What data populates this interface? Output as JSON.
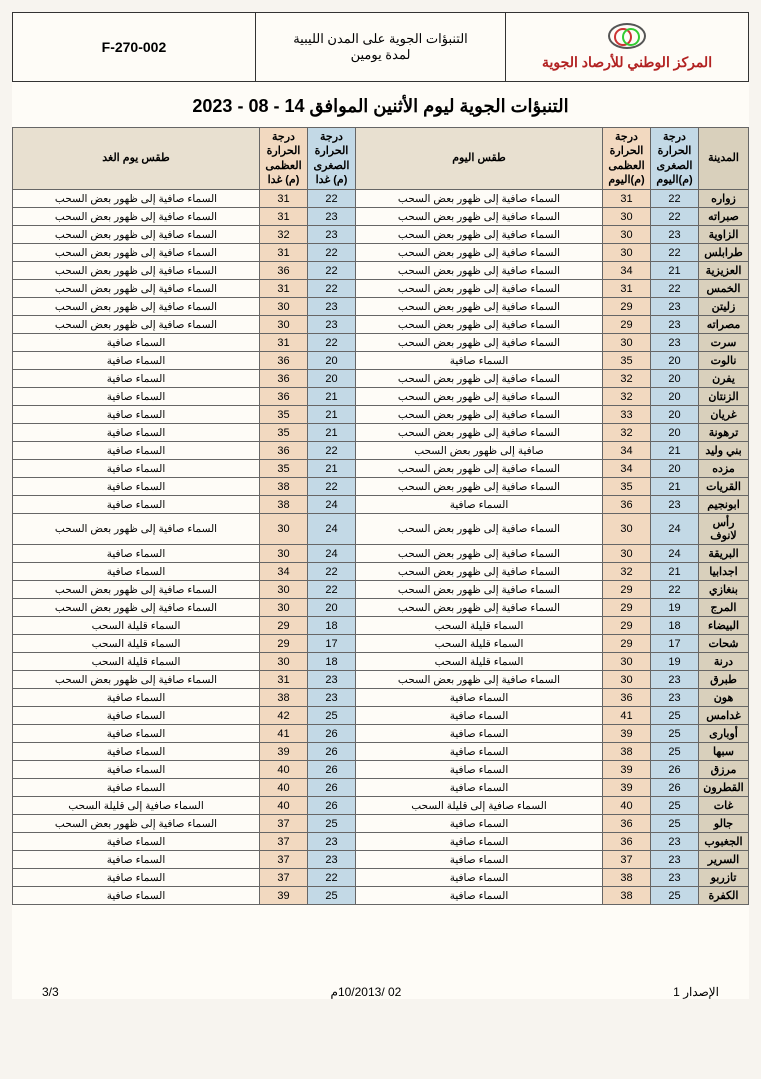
{
  "header": {
    "form_no": "F-270-002",
    "middle_line1": "التنبؤات الجوية على المدن الليبية",
    "middle_line2": "لمدة يومين",
    "org_name": "المركز الوطني للأرصاد الجوية"
  },
  "main_title": "التنبؤات الجوية ليوم الأثنين الموافق 14 - 08 - 2023",
  "columns": {
    "city": "المدينة",
    "min_today": "درجة الحرارة الصغرى (م)اليوم",
    "max_today": "درجة الحرارة العظمى (م)اليوم",
    "weather_today": "طقس اليوم",
    "min_tomorrow": "درجة الحرارة الصغرى (م) غدا",
    "max_tomorrow": "درجة الحرارة العظمى (م) غدا",
    "weather_tomorrow": "طقس يوم الغد"
  },
  "rows": [
    {
      "city": "زواره",
      "min_t": 22,
      "max_t": 31,
      "w_t": "السماء صافية إلى ظهور بعض السحب",
      "min_m": 22,
      "max_m": 31,
      "w_m": "السماء صافية إلى ظهور بعض السحب"
    },
    {
      "city": "صبراته",
      "min_t": 22,
      "max_t": 30,
      "w_t": "السماء صافية إلى ظهور بعض السحب",
      "min_m": 23,
      "max_m": 31,
      "w_m": "السماء صافية إلى ظهور بعض السحب"
    },
    {
      "city": "الزاوية",
      "min_t": 23,
      "max_t": 30,
      "w_t": "السماء صافية إلى ظهور بعض السحب",
      "min_m": 23,
      "max_m": 32,
      "w_m": "السماء صافية إلى ظهور بعض السحب"
    },
    {
      "city": "طرابلس",
      "min_t": 22,
      "max_t": 30,
      "w_t": "السماء صافية إلى ظهور بعض السحب",
      "min_m": 22,
      "max_m": 31,
      "w_m": "السماء صافية إلى ظهور بعض السحب"
    },
    {
      "city": "العزيزية",
      "min_t": 21,
      "max_t": 34,
      "w_t": "السماء صافية إلى ظهور بعض السحب",
      "min_m": 22,
      "max_m": 36,
      "w_m": "السماء صافية إلى ظهور بعض السحب"
    },
    {
      "city": "الخمس",
      "min_t": 22,
      "max_t": 31,
      "w_t": "السماء صافية إلى ظهور بعض السحب",
      "min_m": 22,
      "max_m": 31,
      "w_m": "السماء صافية إلى ظهور بعض السحب"
    },
    {
      "city": "زليتن",
      "min_t": 23,
      "max_t": 29,
      "w_t": "السماء صافية إلى ظهور بعض السحب",
      "min_m": 23,
      "max_m": 30,
      "w_m": "السماء صافية إلى ظهور بعض السحب"
    },
    {
      "city": "مصراته",
      "min_t": 23,
      "max_t": 29,
      "w_t": "السماء صافية إلى ظهور بعض السحب",
      "min_m": 23,
      "max_m": 30,
      "w_m": "السماء صافية إلى ظهور بعض السحب"
    },
    {
      "city": "سرت",
      "min_t": 23,
      "max_t": 30,
      "w_t": "السماء صافية إلى ظهور بعض السحب",
      "min_m": 22,
      "max_m": 31,
      "w_m": "السماء صافية"
    },
    {
      "city": "نالوت",
      "min_t": 20,
      "max_t": 35,
      "w_t": "السماء صافية",
      "min_m": 20,
      "max_m": 36,
      "w_m": "السماء صافية"
    },
    {
      "city": "يفرن",
      "min_t": 20,
      "max_t": 32,
      "w_t": "السماء صافية إلى ظهور بعض السحب",
      "min_m": 20,
      "max_m": 36,
      "w_m": "السماء صافية"
    },
    {
      "city": "الزنتان",
      "min_t": 20,
      "max_t": 32,
      "w_t": "السماء صافية إلى ظهور بعض السحب",
      "min_m": 21,
      "max_m": 36,
      "w_m": "السماء صافية"
    },
    {
      "city": "غريان",
      "min_t": 20,
      "max_t": 33,
      "w_t": "السماء صافية إلى ظهور بعض السحب",
      "min_m": 21,
      "max_m": 35,
      "w_m": "السماء صافية"
    },
    {
      "city": "ترهونة",
      "min_t": 20,
      "max_t": 32,
      "w_t": "السماء صافية إلى ظهور بعض السحب",
      "min_m": 21,
      "max_m": 35,
      "w_m": "السماء صافية"
    },
    {
      "city": "بني وليد",
      "min_t": 21,
      "max_t": 34,
      "w_t": "صافية إلى ظهور بعض السحب",
      "min_m": 22,
      "max_m": 36,
      "w_m": "السماء صافية"
    },
    {
      "city": "مزده",
      "min_t": 20,
      "max_t": 34,
      "w_t": "السماء صافية إلى ظهور بعض السحب",
      "min_m": 21,
      "max_m": 35,
      "w_m": "السماء صافية"
    },
    {
      "city": "القريات",
      "min_t": 21,
      "max_t": 35,
      "w_t": "السماء صافية إلى ظهور بعض السحب",
      "min_m": 22,
      "max_m": 38,
      "w_m": "السماء صافية"
    },
    {
      "city": "ابونجيم",
      "min_t": 23,
      "max_t": 36,
      "w_t": "السماء صافية",
      "min_m": 24,
      "max_m": 38,
      "w_m": "السماء صافية"
    },
    {
      "city": "رأس لانوف",
      "min_t": 24,
      "max_t": 30,
      "w_t": "السماء صافية إلى ظهور بعض السحب",
      "min_m": 24,
      "max_m": 30,
      "w_m": "السماء صافية إلى ظهور بعض السحب"
    },
    {
      "city": "البريقة",
      "min_t": 24,
      "max_t": 30,
      "w_t": "السماء صافية إلى ظهور بعض السحب",
      "min_m": 24,
      "max_m": 30,
      "w_m": "السماء صافية"
    },
    {
      "city": "اجدابيا",
      "min_t": 21,
      "max_t": 32,
      "w_t": "السماء صافية إلى ظهور بعض السحب",
      "min_m": 22,
      "max_m": 34,
      "w_m": "السماء صافية"
    },
    {
      "city": "بنغازي",
      "min_t": 22,
      "max_t": 29,
      "w_t": "السماء صافية إلى ظهور بعض السحب",
      "min_m": 22,
      "max_m": 30,
      "w_m": "السماء صافية إلى ظهور بعض السحب"
    },
    {
      "city": "المرج",
      "min_t": 19,
      "max_t": 29,
      "w_t": "السماء صافية إلى ظهور بعض السحب",
      "min_m": 20,
      "max_m": 30,
      "w_m": "السماء صافية إلى ظهور بعض السحب"
    },
    {
      "city": "البيضاء",
      "min_t": 18,
      "max_t": 29,
      "w_t": "السماء قليلة السحب",
      "min_m": 18,
      "max_m": 29,
      "w_m": "السماء قليلة السحب"
    },
    {
      "city": "شحات",
      "min_t": 17,
      "max_t": 29,
      "w_t": "السماء قليلة السحب",
      "min_m": 17,
      "max_m": 29,
      "w_m": "السماء قليلة السحب"
    },
    {
      "city": "درنة",
      "min_t": 19,
      "max_t": 30,
      "w_t": "السماء قليلة السحب",
      "min_m": 18,
      "max_m": 30,
      "w_m": "السماء قليلة السحب"
    },
    {
      "city": "طبرق",
      "min_t": 23,
      "max_t": 30,
      "w_t": "السماء صافية إلى ظهور بعض السحب",
      "min_m": 23,
      "max_m": 31,
      "w_m": "السماء صافية إلى ظهور بعض السحب"
    },
    {
      "city": "هون",
      "min_t": 23,
      "max_t": 36,
      "w_t": "السماء صافية",
      "min_m": 23,
      "max_m": 38,
      "w_m": "السماء صافية"
    },
    {
      "city": "غدامس",
      "min_t": 25,
      "max_t": 41,
      "w_t": "السماء صافية",
      "min_m": 25,
      "max_m": 42,
      "w_m": "السماء صافية"
    },
    {
      "city": "أوبارى",
      "min_t": 25,
      "max_t": 39,
      "w_t": "السماء صافية",
      "min_m": 26,
      "max_m": 41,
      "w_m": "السماء صافية"
    },
    {
      "city": "سبها",
      "min_t": 25,
      "max_t": 38,
      "w_t": "السماء صافية",
      "min_m": 26,
      "max_m": 39,
      "w_m": "السماء صافية"
    },
    {
      "city": "مرزق",
      "min_t": 26,
      "max_t": 39,
      "w_t": "السماء صافية",
      "min_m": 26,
      "max_m": 40,
      "w_m": "السماء صافية"
    },
    {
      "city": "القطرون",
      "min_t": 26,
      "max_t": 39,
      "w_t": "السماء صافية",
      "min_m": 26,
      "max_m": 40,
      "w_m": "السماء صافية"
    },
    {
      "city": "غات",
      "min_t": 25,
      "max_t": 40,
      "w_t": "السماء صافية إلى قليلة السحب",
      "min_m": 26,
      "max_m": 40,
      "w_m": "السماء صافية إلى قليلة السحب"
    },
    {
      "city": "جالو",
      "min_t": 25,
      "max_t": 36,
      "w_t": "السماء صافية",
      "min_m": 25,
      "max_m": 37,
      "w_m": "السماء صافية إلى ظهور بعض السحب"
    },
    {
      "city": "الجغبوب",
      "min_t": 23,
      "max_t": 36,
      "w_t": "السماء صافية",
      "min_m": 23,
      "max_m": 37,
      "w_m": "السماء صافية"
    },
    {
      "city": "السرير",
      "min_t": 23,
      "max_t": 37,
      "w_t": "السماء صافية",
      "min_m": 23,
      "max_m": 37,
      "w_m": "السماء صافية"
    },
    {
      "city": "تازربو",
      "min_t": 23,
      "max_t": 38,
      "w_t": "السماء صافية",
      "min_m": 22,
      "max_m": 37,
      "w_m": "السماء صافية"
    },
    {
      "city": "الكفرة",
      "min_t": 25,
      "max_t": 38,
      "w_t": "السماء صافية",
      "min_m": 25,
      "max_m": 39,
      "w_m": "السماء صافية"
    }
  ],
  "footer": {
    "issue": "الإصدار  1",
    "date": "02 /10/2013م",
    "page": "3/3"
  }
}
